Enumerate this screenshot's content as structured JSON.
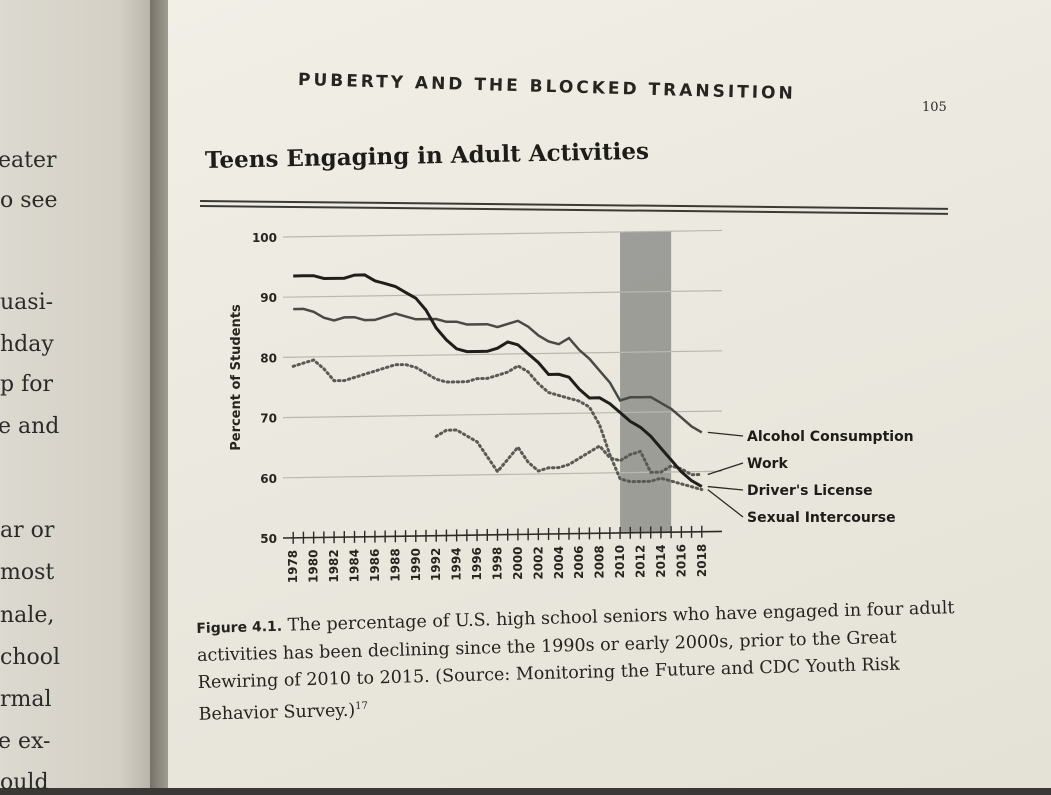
{
  "left_page": {
    "lines": [
      "eater",
      "o see",
      "uasi-",
      "hday",
      "p for",
      "e and",
      "ar or",
      "most",
      "nale,",
      "chool",
      "rmal",
      "e ex-",
      "ould"
    ]
  },
  "running_head": "PUBERTY AND THE BLOCKED TRANSITION",
  "page_number": "105",
  "figure_title": "Teens Engaging in Adult Activities",
  "caption": {
    "label": "Figure 4.1.",
    "text": " The percentage of U.S. high school seniors who have engaged in four adult activities has been declining since the 1990s or early 2000s, prior to the Great Rewiring of 2010 to 2015. (Source: Monitoring the Future and CDC Youth Risk Behavior Survey.)",
    "note": "17"
  },
  "chart_data": {
    "type": "line",
    "title": "Teens Engaging in Adult Activities",
    "xlabel": "",
    "ylabel": "Percent of Students",
    "xlim": [
      1977,
      2019
    ],
    "ylim": [
      50,
      100
    ],
    "y_ticks": [
      50,
      60,
      70,
      80,
      90,
      100
    ],
    "x_ticks": [
      1978,
      1980,
      1982,
      1984,
      1986,
      1988,
      1990,
      1992,
      1994,
      1996,
      1998,
      2000,
      2002,
      2004,
      2006,
      2008,
      2010,
      2012,
      2014,
      2016,
      2018
    ],
    "grid": true,
    "shaded_region": [
      2010,
      2015
    ],
    "colors": {
      "shade": "#8f8f8c",
      "line_dark": "#1f1e1b",
      "line_mid": "#4a4945",
      "line_dotted": "#5a5954",
      "grid": "#b9b7b0"
    },
    "series": [
      {
        "name": "Alcohol Consumption",
        "style": "solid-mid",
        "x": [
          1978,
          1979,
          1980,
          1981,
          1982,
          1983,
          1984,
          1985,
          1986,
          1987,
          1988,
          1989,
          1990,
          1991,
          1992,
          1993,
          1994,
          1995,
          1996,
          1997,
          1998,
          1999,
          2000,
          2001,
          2002,
          2003,
          2004,
          2005,
          2006,
          2007,
          2008,
          2009,
          2010,
          2011,
          2012,
          2013,
          2014,
          2015,
          2016,
          2017,
          2018
        ],
        "y": [
          88,
          88,
          87.5,
          86.5,
          86,
          86.5,
          86.5,
          86,
          86,
          86.5,
          87,
          86.5,
          86,
          86,
          86,
          85.5,
          85.5,
          85,
          85,
          85,
          84.5,
          85,
          85.5,
          84.5,
          83,
          82,
          81.5,
          82.5,
          80.5,
          79,
          77,
          75,
          72,
          72.5,
          72.5,
          72.5,
          71.5,
          70.5,
          69,
          67.5,
          66.5
        ]
      },
      {
        "name": "Work",
        "style": "dotted",
        "x": [
          1992,
          1993,
          1994,
          1995,
          1996,
          1997,
          1998,
          1999,
          2000,
          2001,
          2002,
          2003,
          2004,
          2005,
          2006,
          2007,
          2008,
          2009,
          2010,
          2011,
          2012,
          2013,
          2014,
          2015,
          2016,
          2017,
          2018
        ],
        "y": [
          66.5,
          67.5,
          67.5,
          66.5,
          65.5,
          63,
          60.5,
          62.5,
          64.5,
          62,
          60.5,
          61,
          61,
          61.5,
          62.5,
          63.5,
          64.5,
          62.5,
          62,
          63,
          63.5,
          60,
          60,
          61,
          60.5,
          59.5,
          59.5
        ]
      },
      {
        "name": "Driver's License",
        "style": "solid-dark",
        "x": [
          1978,
          1979,
          1980,
          1981,
          1982,
          1983,
          1984,
          1985,
          1986,
          1987,
          1988,
          1989,
          1990,
          1991,
          1992,
          1993,
          1994,
          1995,
          1996,
          1997,
          1998,
          1999,
          2000,
          2001,
          2002,
          2003,
          2004,
          2005,
          2006,
          2007,
          2008,
          2009,
          2010,
          2011,
          2012,
          2013,
          2014,
          2015,
          2016,
          2017,
          2018
        ],
        "y": [
          93.5,
          93.5,
          93.5,
          93,
          93,
          93,
          93.5,
          93.5,
          92.5,
          92,
          91.5,
          90.5,
          89.5,
          87.5,
          84.5,
          82.5,
          81,
          80.5,
          80.5,
          80.5,
          81,
          82,
          81.5,
          80,
          78.5,
          76.5,
          76.5,
          76,
          74,
          72.5,
          72.5,
          71.5,
          70,
          68.5,
          67.5,
          66,
          64,
          62,
          60,
          58.5,
          57.5
        ]
      },
      {
        "name": "Sexual Intercourse",
        "style": "dotted",
        "x": [
          1978,
          1979,
          1980,
          1981,
          1982,
          1983,
          1984,
          1985,
          1986,
          1987,
          1988,
          1989,
          1990,
          1991,
          1992,
          1993,
          1994,
          1995,
          1996,
          1997,
          1998,
          1999,
          2000,
          2001,
          2002,
          2003,
          2004,
          2005,
          2006,
          2007,
          2008,
          2009,
          2010,
          2011,
          2012,
          2013,
          2014,
          2015,
          2016,
          2017,
          2018
        ],
        "y": [
          78.5,
          79,
          79.5,
          78,
          76,
          76,
          76.5,
          77,
          77.5,
          78,
          78.5,
          78.5,
          78,
          77,
          76,
          75.5,
          75.5,
          75.5,
          76,
          76,
          76.5,
          77,
          78,
          77,
          75,
          73.5,
          73,
          72.5,
          72,
          71,
          68,
          63,
          59,
          58.5,
          58.5,
          58.5,
          59,
          58.5,
          58,
          57.5,
          57
        ]
      }
    ]
  }
}
